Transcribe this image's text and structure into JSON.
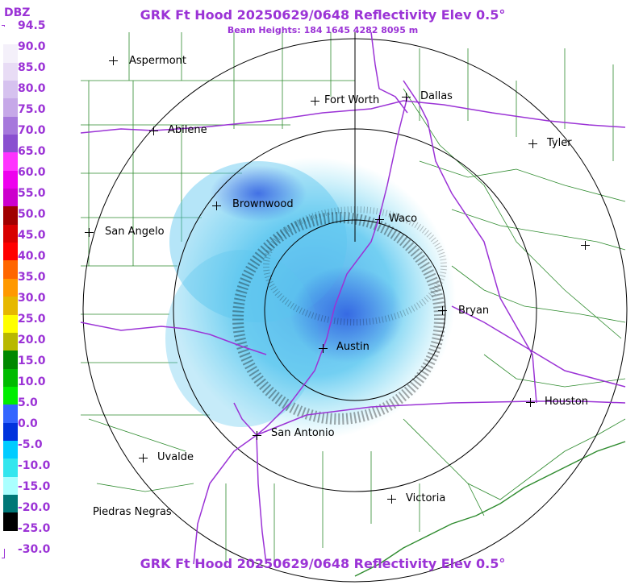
{
  "header": {
    "title": "GRK Ft Hood 20250629/0648 Reflectivity Elev 0.5°",
    "subtitle": "Beam Heights: 184 1645 4282 8095 m",
    "footer": "GRK Ft Hood 20250629/0648 Reflectivity Elev 0.5°"
  },
  "colorbar": {
    "unit": "DBZ",
    "ticks": [
      "94.5",
      "90.0",
      "85.0",
      "80.0",
      "75.0",
      "70.0",
      "65.0",
      "60.0",
      "55.0",
      "50.0",
      "45.0",
      "40.0",
      "35.0",
      "30.0",
      "25.0",
      "20.0",
      "15.0",
      "10.0",
      "5.0",
      "0.0",
      "-5.0",
      "-10.0",
      "-15.0",
      "-20.0",
      "-25.0",
      "-30.0"
    ],
    "colors": [
      "#ffffff",
      "#f4f0fa",
      "#e8dcf5",
      "#d6c2ef",
      "#c6a8e8",
      "#a678dc",
      "#8a4fd0",
      "#ff33ff",
      "#ee00ee",
      "#cc00cc",
      "#a00000",
      "#d80000",
      "#ff0000",
      "#ff6600",
      "#ff9900",
      "#e6b800",
      "#ffff00",
      "#b8b800",
      "#008800",
      "#00bb00",
      "#00ee00",
      "#3366ff",
      "#0033dd",
      "#00ccff",
      "#33e6ee",
      "#aaffff",
      "#007777",
      "#000000",
      "#ffffff"
    ]
  },
  "cities": [
    {
      "name": "Aspermont"
    },
    {
      "name": "Abilene"
    },
    {
      "name": "Fort Worth"
    },
    {
      "name": "Dallas"
    },
    {
      "name": "Tyler"
    },
    {
      "name": "Brownwood"
    },
    {
      "name": "Waco"
    },
    {
      "name": "San Angelo"
    },
    {
      "name": "Bryan"
    },
    {
      "name": "Austin"
    },
    {
      "name": "Houston"
    },
    {
      "name": "San Antonio"
    },
    {
      "name": "Uvalde"
    },
    {
      "name": "Victoria"
    },
    {
      "name": "Piedras Negras"
    }
  ],
  "colors": {
    "text": "#9b33d6",
    "roads": "#9b33d6",
    "counties": "#2e8b2e",
    "range_rings": "#000000"
  }
}
